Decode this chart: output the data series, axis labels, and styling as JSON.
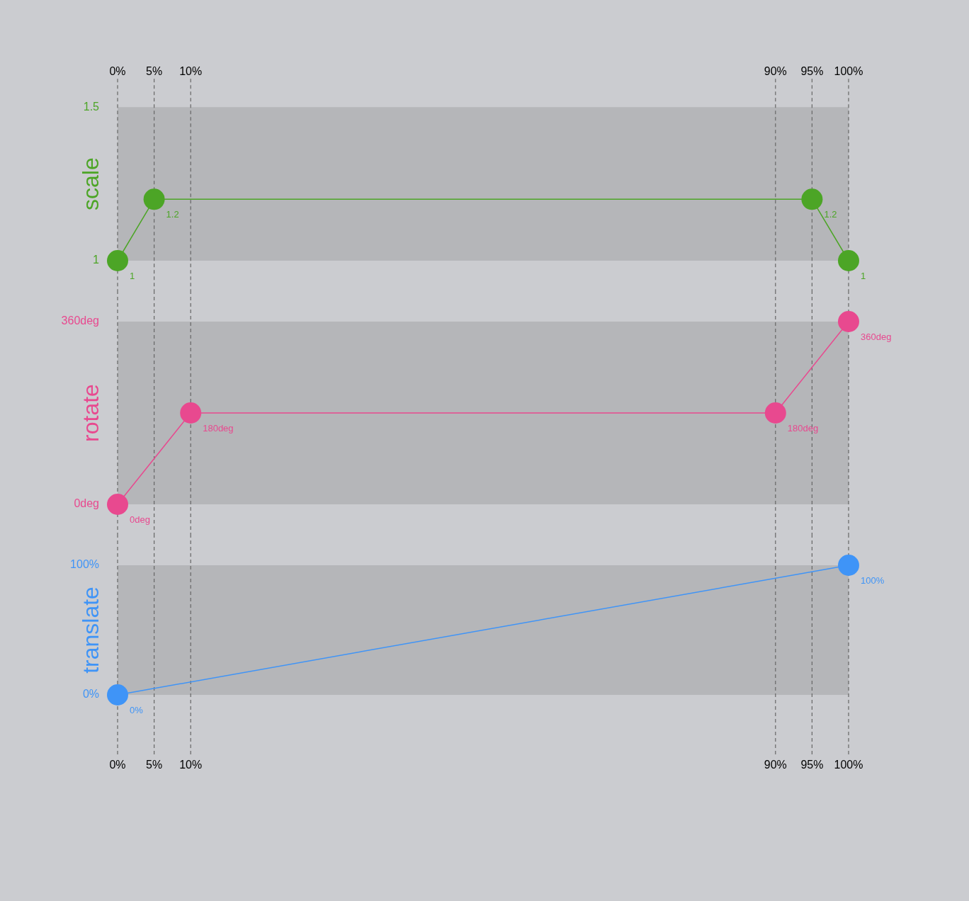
{
  "chart_data": [
    {
      "type": "line",
      "ylabel": "scale",
      "xlim": [
        0,
        100
      ],
      "xticks": [
        {
          "value": 0,
          "label": "0%"
        },
        {
          "value": 5,
          "label": "5%"
        },
        {
          "value": 10,
          "label": "10%"
        },
        {
          "value": 90,
          "label": "90%"
        },
        {
          "value": 95,
          "label": "95%"
        },
        {
          "value": 100,
          "label": "100%"
        }
      ],
      "ylim": [
        1,
        1.5
      ],
      "yticks": [
        1,
        1.5
      ],
      "grid": "x",
      "marker": "circle",
      "data_labels": true,
      "series": [
        {
          "color": "#4ca526",
          "x": [
            0,
            5,
            95,
            100
          ],
          "values": [
            1,
            1.2,
            1.2,
            1
          ]
        }
      ]
    },
    {
      "type": "line",
      "ylabel": "rotate",
      "xlim": [
        0,
        100
      ],
      "xticks": [
        {
          "value": 0,
          "label": null
        },
        {
          "value": 5,
          "label": null
        },
        {
          "value": 10,
          "label": null
        },
        {
          "value": 90,
          "label": null
        },
        {
          "value": 95,
          "label": null
        },
        {
          "value": 100,
          "label": null
        }
      ],
      "ylim": [
        0,
        360
      ],
      "yticks": [
        {
          "value": 0,
          "label": "0deg"
        },
        {
          "value": 360,
          "label": "360deg"
        }
      ],
      "grid": "x",
      "marker": "circle",
      "tick_labels": "y",
      "series": [
        {
          "color": "#e8498f",
          "x": [
            0,
            10,
            90,
            100
          ],
          "values": [
            0,
            180,
            180,
            360
          ],
          "value_labels": [
            "0deg",
            "180deg",
            "180deg",
            "360deg"
          ]
        }
      ]
    },
    {
      "type": "line",
      "ylabel": "translate",
      "xlim": [
        0,
        100
      ],
      "xticks": [
        {
          "value": 0,
          "label": "0%"
        },
        {
          "value": 5,
          "label": "5%"
        },
        {
          "value": 10,
          "label": "10%"
        },
        {
          "value": 90,
          "label": "90%"
        },
        {
          "value": 95,
          "label": "95%"
        },
        {
          "value": 100,
          "label": "100%"
        }
      ],
      "ylim": [
        0,
        100
      ],
      "yticks": [
        {
          "value": 0,
          "label": "0%"
        },
        {
          "value": 100,
          "label": "100%"
        }
      ],
      "grid": "x",
      "marker": "circle",
      "series": [
        {
          "color": "#3f94f7",
          "x": [
            0,
            100
          ],
          "values": [
            0,
            100
          ],
          "value_labels": [
            "0%",
            "100%"
          ]
        }
      ]
    }
  ]
}
